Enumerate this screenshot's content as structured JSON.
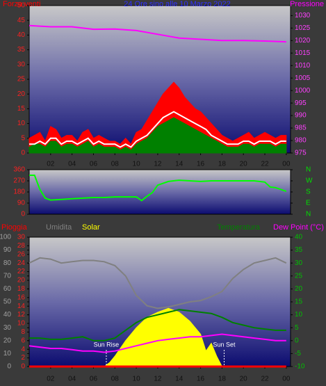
{
  "chart_data": [
    {
      "type": "line",
      "title": "24 Ore sino alle 10 Marzo 2022",
      "x": [
        0,
        0.5,
        1,
        1.5,
        2,
        2.5,
        3,
        3.5,
        4,
        4.5,
        5,
        5.5,
        6,
        6.5,
        7,
        7.5,
        8,
        8.5,
        9,
        9.5,
        10,
        10.5,
        11,
        11.5,
        12,
        12.5,
        13,
        13.5,
        14,
        14.5,
        15,
        15.5,
        16,
        16.5,
        17,
        17.5,
        18,
        18.5,
        19,
        19.5,
        20,
        20.5,
        21,
        21.5,
        22,
        22.5,
        23,
        23.5,
        24
      ],
      "xlim": [
        0,
        24.4
      ],
      "xticks": [
        {
          "value": 2,
          "label": "02"
        },
        {
          "value": 4,
          "label": "04"
        },
        {
          "value": 6,
          "label": "06"
        },
        {
          "value": 8,
          "label": "08"
        },
        10,
        12,
        14,
        16,
        18,
        20,
        22,
        {
          "value": 24,
          "label": "00"
        }
      ],
      "ylim": [
        0,
        50
      ],
      "yticks": [
        0,
        5,
        10,
        15,
        20,
        25,
        30,
        35,
        40,
        45,
        50
      ],
      "y2lim": [
        975,
        1034
      ],
      "y2ticks": [
        975,
        980,
        985,
        990,
        995,
        1000,
        1005,
        1010,
        1015,
        1020,
        1025,
        1030
      ],
      "series": [
        {
          "name": "Forza venti",
          "color": "#ff0000",
          "style": "area",
          "values": [
            5,
            6,
            7,
            4,
            9,
            8,
            5,
            6,
            6,
            4,
            7,
            8,
            5,
            6,
            5,
            4,
            4,
            3,
            5,
            3,
            7,
            8,
            11,
            14,
            17,
            20,
            22,
            24,
            22,
            19,
            17,
            15,
            14,
            12,
            10,
            8,
            6,
            5,
            4,
            5,
            6,
            7,
            5,
            6,
            7,
            6,
            5,
            6,
            6
          ]
        },
        {
          "color": "#008000",
          "style": "area",
          "values": [
            2,
            3,
            3,
            2,
            4,
            4,
            2,
            3,
            3,
            2,
            3,
            4,
            2,
            3,
            2,
            2,
            2,
            1,
            2,
            1,
            3,
            4,
            5,
            7,
            9,
            10,
            11,
            12,
            11,
            10,
            9,
            8,
            7,
            6,
            5,
            4,
            3,
            2,
            2,
            2,
            3,
            3,
            2,
            3,
            3,
            3,
            2,
            3,
            3
          ]
        },
        {
          "color": "#ffffff",
          "style": "line",
          "values": [
            3,
            3,
            4,
            3,
            5,
            5,
            3,
            4,
            4,
            3,
            4,
            5,
            3,
            4,
            3,
            3,
            3,
            2,
            3,
            2,
            4,
            5,
            6,
            8,
            10,
            12,
            13,
            14,
            13,
            12,
            11,
            10,
            9,
            8,
            6,
            5,
            4,
            3,
            3,
            3,
            4,
            4,
            3,
            4,
            4,
            4,
            3,
            4,
            4
          ]
        },
        {
          "name": "Pressione",
          "color": "#ff00ff",
          "style": "line",
          "axis": "y2",
          "x": [
            0,
            2,
            4,
            6,
            8,
            10,
            12,
            14,
            16,
            18,
            20,
            22,
            24
          ],
          "values": [
            1026,
            1025.5,
            1025.5,
            1024.5,
            1024.6,
            1024,
            1022.5,
            1021,
            1020.5,
            1020,
            1020,
            1019.8,
            1019.5
          ]
        }
      ]
    },
    {
      "type": "line",
      "x": [
        0,
        0.5,
        1,
        1.5,
        2,
        3,
        4,
        5,
        6,
        7,
        8,
        9,
        10,
        10.5,
        11,
        11.5,
        12,
        13,
        14,
        15,
        16,
        17,
        18,
        19,
        20,
        21,
        22,
        22.5,
        23,
        24
      ],
      "xlim": [
        0,
        24.4
      ],
      "ylim": [
        0,
        360
      ],
      "yticks": [
        0,
        90,
        180,
        270,
        360
      ],
      "y2lim": [
        0,
        360
      ],
      "y2ticks": [
        {
          "value": 360,
          "label": "N"
        },
        {
          "value": 270,
          "label": "W"
        },
        {
          "value": 180,
          "label": "S"
        },
        {
          "value": 90,
          "label": "E"
        },
        {
          "value": 0,
          "label": "N"
        }
      ],
      "series": [
        {
          "color": "#00ff00",
          "style": "line",
          "values": [
            315,
            315,
            200,
            130,
            115,
            120,
            125,
            130,
            135,
            135,
            140,
            140,
            140,
            110,
            145,
            175,
            235,
            265,
            275,
            270,
            265,
            270,
            270,
            270,
            270,
            270,
            260,
            220,
            215,
            185
          ]
        }
      ]
    },
    {
      "type": "line",
      "x": [
        0,
        1,
        2,
        3,
        4,
        5,
        6,
        7,
        8,
        9,
        10,
        11,
        12,
        13,
        14,
        15,
        16,
        17,
        18,
        19,
        20,
        21,
        22,
        23,
        24
      ],
      "xlim": [
        0,
        24.4
      ],
      "xticks": [
        {
          "value": 2,
          "label": "02"
        },
        {
          "value": 4,
          "label": "04"
        },
        {
          "value": 6,
          "label": "06"
        },
        {
          "value": 8,
          "label": "08"
        },
        10,
        12,
        14,
        16,
        18,
        20,
        22,
        {
          "value": 24,
          "label": "00"
        }
      ],
      "ylim": [
        0,
        100
      ],
      "yticks": [
        0,
        10,
        20,
        30,
        40,
        50,
        60,
        70,
        80,
        90,
        100
      ],
      "rain_ylim": [
        0,
        30
      ],
      "rain_yticks": [
        0,
        2,
        4,
        6,
        8,
        10,
        12,
        14,
        16,
        18,
        20,
        22,
        24,
        26,
        28,
        30
      ],
      "y2lim": [
        -10,
        40
      ],
      "y2ticks": [
        -10,
        -5,
        0,
        5,
        10,
        15,
        20,
        25,
        30,
        35,
        40
      ],
      "series": [
        {
          "name": "Pioggia",
          "color": "#ff0000",
          "style": "line",
          "axis": "rain",
          "x": [
            0,
            24
          ],
          "values": [
            0,
            0
          ]
        },
        {
          "name": "Umidita",
          "color": "#808080",
          "style": "line",
          "values": [
            80,
            84,
            83,
            80,
            81,
            82,
            82,
            81,
            78,
            70,
            55,
            47,
            45,
            46,
            48,
            50,
            51,
            54,
            58,
            68,
            75,
            80,
            82,
            84,
            80
          ]
        },
        {
          "name": "Solar",
          "color": "#ffff00",
          "style": "area",
          "x": [
            7,
            7.5,
            8,
            9,
            10,
            11,
            12,
            13,
            14,
            15,
            16,
            16.5,
            17,
            17.5,
            18
          ],
          "values": [
            0,
            3,
            8,
            20,
            30,
            38,
            42,
            45,
            42,
            35,
            25,
            12,
            18,
            8,
            0
          ]
        },
        {
          "name": "Temperatura",
          "color": "#008000",
          "style": "line",
          "axis": "y2",
          "values": [
            1,
            1,
            0.5,
            0.5,
            1,
            1.5,
            0,
            0,
            1,
            4,
            7,
            9,
            10,
            11,
            12,
            11.5,
            11,
            10.5,
            9,
            7,
            6,
            5,
            4.5,
            4,
            4
          ]
        },
        {
          "name": "Dew Point (°C)",
          "color": "#ff00ff",
          "style": "line",
          "axis": "y2",
          "values": [
            -2,
            -2.5,
            -3,
            -3,
            -3.5,
            -4,
            -4,
            -4.5,
            -4,
            -3,
            -2,
            -1,
            0,
            0.5,
            1,
            1.5,
            1.5,
            2,
            2.5,
            2,
            1.5,
            1,
            0.5,
            0,
            0
          ]
        }
      ],
      "annotations": [
        {
          "text": "Sun Rise",
          "x": 7.2
        },
        {
          "text": "Sun Set",
          "x": 18.2
        }
      ]
    }
  ]
}
